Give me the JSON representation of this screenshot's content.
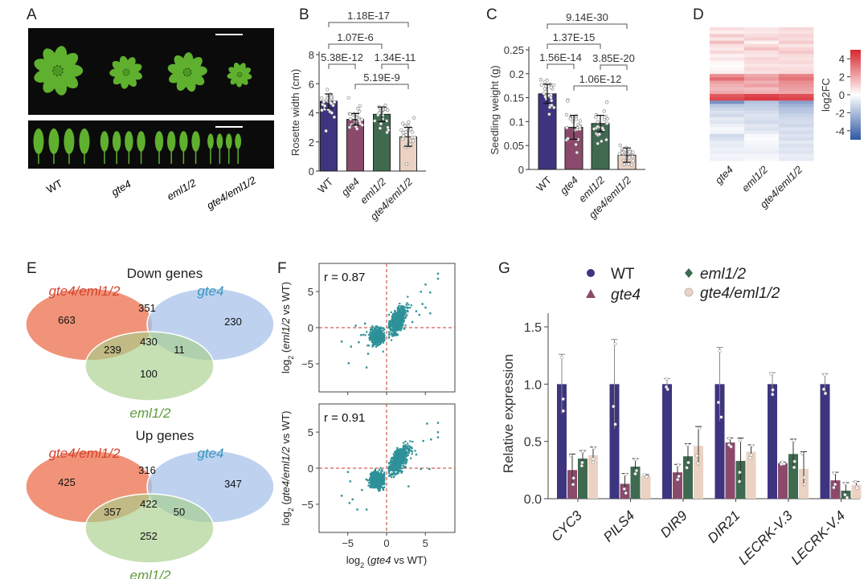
{
  "labels": {
    "A": "A",
    "B": "B",
    "C": "C",
    "D": "D",
    "E": "E",
    "F": "F",
    "G": "G"
  },
  "colors": {
    "WT": "#3d3580",
    "gte4": "#8b4a6c",
    "eml1/2": "#3f6a50",
    "gte4/eml1/2": "#ebd2c3",
    "venn_red": "#f0876a",
    "venn_blue": "#a8c3ea",
    "venn_green": "#a8d08a",
    "scatter": "#2e9198",
    "heat_pos": "#d7262e",
    "heat_neg": "#2f57a5"
  },
  "chart_data": [
    {
      "id": "A",
      "type": "image",
      "genotypes": [
        "WT",
        "gte4",
        "eml1/2",
        "gte4/eml1/2"
      ]
    },
    {
      "id": "B",
      "type": "bar",
      "categories": [
        "WT",
        "gte4",
        "eml1/2",
        "gte4/eml1/2"
      ],
      "values": [
        4.8,
        3.55,
        3.9,
        2.35
      ],
      "errors": [
        0.5,
        0.4,
        0.5,
        0.65
      ],
      "ylabel": "Rosette width (cm)",
      "ylim": [
        0,
        8
      ],
      "yticks": [
        0,
        2,
        4,
        6,
        8
      ],
      "yticklabels": [
        "0",
        "2",
        "4",
        "6",
        "8"
      ],
      "comparisons": [
        {
          "pair": [
            0,
            3
          ],
          "p": "1.18E-17"
        },
        {
          "pair": [
            0,
            2
          ],
          "p": "1.07E-6"
        },
        {
          "pair": [
            0,
            1
          ],
          "p": "5.38E-12"
        },
        {
          "pair": [
            2,
            3
          ],
          "p": "1.34E-11"
        },
        {
          "pair": [
            1,
            3
          ],
          "p": "5.19E-9"
        }
      ]
    },
    {
      "id": "C",
      "type": "bar",
      "categories": [
        "WT",
        "gte4",
        "eml1/2",
        "gte4/eml1/2"
      ],
      "values": [
        0.158,
        0.088,
        0.096,
        0.03
      ],
      "errors": [
        0.02,
        0.025,
        0.017,
        0.015
      ],
      "ylabel": "Seedling weight (g)",
      "ylim": [
        0,
        0.25
      ],
      "yticks": [
        0,
        0.05,
        0.1,
        0.15,
        0.2,
        0.25
      ],
      "yticklabels": [
        "0",
        "0.05",
        "0.1",
        "0.15",
        "0.2",
        "0.25"
      ],
      "comparisons": [
        {
          "pair": [
            0,
            3
          ],
          "p": "9.14E-30"
        },
        {
          "pair": [
            0,
            2
          ],
          "p": "1.37E-15"
        },
        {
          "pair": [
            0,
            1
          ],
          "p": "1.56E-14"
        },
        {
          "pair": [
            2,
            3
          ],
          "p": "3.85E-20"
        },
        {
          "pair": [
            1,
            3
          ],
          "p": "1.06E-12"
        }
      ]
    },
    {
      "id": "D",
      "type": "heatmap",
      "columns": [
        "gte4",
        "eml1/2",
        "gte4/eml1/2"
      ],
      "colorbar_label": "log2FC",
      "colorbar_ticks": [
        4,
        2,
        0,
        -2,
        -4
      ],
      "colorbar_ticklabels": [
        "4",
        "2",
        "0",
        "-2",
        "-4"
      ],
      "range": [
        -5,
        5
      ],
      "rows": [
        [
          0.8,
          0.6,
          0.9
        ],
        [
          0.4,
          0.5,
          0.7
        ],
        [
          1.2,
          0.8,
          1.0
        ],
        [
          0.6,
          1.1,
          0.8
        ],
        [
          1.5,
          0.3,
          1.2
        ],
        [
          0.7,
          0.9,
          0.6
        ],
        [
          0.5,
          1.4,
          1.0
        ],
        [
          0.9,
          0.7,
          1.3
        ],
        [
          0.3,
          0.6,
          0.8
        ],
        [
          0.6,
          1.0,
          0.7
        ],
        [
          0.2,
          0.8,
          0.9
        ],
        [
          0.1,
          0.6,
          0.6
        ],
        [
          0.2,
          0.9,
          0.8
        ],
        [
          0.4,
          0.7,
          0.9
        ],
        [
          2.6,
          2.0,
          2.9
        ],
        [
          3.4,
          2.4,
          3.2
        ],
        [
          2.2,
          1.8,
          2.6
        ],
        [
          1.8,
          2.2,
          2.4
        ],
        [
          1.6,
          1.5,
          2.2
        ],
        [
          2.0,
          1.8,
          2.0
        ],
        [
          3.8,
          4.3,
          4.0
        ],
        [
          4.2,
          4.6,
          4.3
        ],
        [
          -3.2,
          -1.8,
          -2.8
        ],
        [
          -1.6,
          -1.5,
          -2.2
        ],
        [
          -1.2,
          -1.3,
          -1.8
        ],
        [
          -0.9,
          -1.0,
          -1.6
        ],
        [
          -1.1,
          -0.8,
          -1.3
        ],
        [
          -0.6,
          -0.9,
          -1.1
        ],
        [
          -0.8,
          -1.1,
          -1.0
        ],
        [
          -0.4,
          -0.7,
          -1.2
        ],
        [
          -0.2,
          -0.9,
          -0.8
        ],
        [
          -0.3,
          -0.6,
          -1.0
        ],
        [
          -1.1,
          -0.2,
          -0.8
        ],
        [
          -0.9,
          -0.1,
          -1.0
        ],
        [
          -0.5,
          -0.2,
          -0.6
        ],
        [
          -0.6,
          -0.3,
          -0.9
        ],
        [
          -0.4,
          -0.4,
          -0.7
        ],
        [
          -0.5,
          -0.5,
          -0.8
        ],
        [
          -0.3,
          -0.3,
          -0.5
        ],
        [
          -0.4,
          -0.2,
          -0.6
        ]
      ]
    },
    {
      "id": "E",
      "type": "venn",
      "sets": [
        "gte4/eml1/2",
        "gte4",
        "eml1/2"
      ],
      "diagrams": [
        {
          "title": "Down genes",
          "regions": {
            "gte4/eml1/2_only": "663",
            "gte4/eml1/2&gte4": "351",
            "gte4_only": "230",
            "gte4/eml1/2&eml1/2": "239",
            "all": "430",
            "gte4&eml1/2": "11",
            "eml1/2_only": "100"
          }
        },
        {
          "title": "Up genes",
          "regions": {
            "gte4/eml1/2_only": "425",
            "gte4/eml1/2&gte4": "316",
            "gte4_only": "347",
            "gte4/eml1/2&eml1/2": "357",
            "all": "422",
            "gte4&eml1/2": "50",
            "eml1/2_only": "252"
          }
        }
      ]
    },
    {
      "id": "F",
      "type": "scatter",
      "xlim": [
        -8.7,
        8.8
      ],
      "ylim": [
        -8.9,
        8.9
      ],
      "xticks": [
        -5,
        0,
        5
      ],
      "yticks": [
        5,
        0,
        -5
      ],
      "ticklabels": {
        "-5": "−5",
        "0": "0",
        "5": "5"
      },
      "xlabel": {
        "pre": "log",
        "sub": "2",
        "open": " (",
        "gene": "gte4",
        "post": " vs WT)"
      },
      "plots": [
        {
          "r_label": "r = 0.87",
          "ylabel": {
            "pre": "log",
            "sub": "2",
            "open": " (",
            "gene": "eml1/2",
            "post": " vs WT)"
          },
          "clusters": [
            {
              "center": [
                -1.2,
                -1.2
              ],
              "sd": [
                0.5,
                0.55
              ],
              "n": 450
            },
            {
              "center": [
                1.4,
                1.0
              ],
              "sd": [
                0.5,
                0.7
              ],
              "n": 650,
              "slope": 0.9
            }
          ],
          "outliers": [
            [
              -4.9,
              -4.9
            ],
            [
              -2.6,
              -5.5
            ],
            [
              -5.8,
              -1.9
            ],
            [
              -4.6,
              -2.6
            ],
            [
              -3.6,
              -2.0
            ],
            [
              -2.4,
              -3.6
            ],
            [
              -4.0,
              0.3
            ],
            [
              -2.8,
              0.6
            ],
            [
              -3.3,
              -1.0
            ],
            [
              6.6,
              7.5
            ],
            [
              6.6,
              6.8
            ],
            [
              5.0,
              6.0
            ],
            [
              5.6,
              4.9
            ],
            [
              4.6,
              3.3
            ],
            [
              5.0,
              2.8
            ],
            [
              3.8,
              2.3
            ],
            [
              4.2,
              1.8
            ],
            [
              3.3,
              0.8
            ],
            [
              5.6,
              2.0
            ],
            [
              4.4,
              5.0
            ]
          ]
        },
        {
          "r_label": "r = 0.91",
          "ylabel": {
            "pre": "log",
            "sub": "2",
            "open": " (",
            "gene": "gte4/eml1/2",
            "post": " vs WT)"
          },
          "clusters": [
            {
              "center": [
                -1.2,
                -1.6
              ],
              "sd": [
                0.5,
                0.6
              ],
              "n": 450
            },
            {
              "center": [
                1.6,
                1.2
              ],
              "sd": [
                0.6,
                0.7
              ],
              "n": 650,
              "slope": 0.9
            }
          ],
          "outliers": [
            [
              -5.8,
              -3.8
            ],
            [
              -4.8,
              -4.8
            ],
            [
              -3.8,
              -5.7
            ],
            [
              -2.6,
              -5.7
            ],
            [
              -4.4,
              -4.3
            ],
            [
              -4.7,
              -1.8
            ],
            [
              -5.0,
              -0.5
            ],
            [
              -3.2,
              -3.0
            ],
            [
              6.6,
              6.3
            ],
            [
              6.6,
              5.0
            ],
            [
              6.6,
              4.3
            ],
            [
              5.2,
              6.2
            ],
            [
              5.7,
              4.0
            ],
            [
              4.7,
              3.8
            ],
            [
              2.8,
              -2.5
            ],
            [
              4.4,
              -0.1
            ],
            [
              5.5,
              -0.1
            ],
            [
              3.8,
              1.9
            ],
            [
              1.9,
              -0.6
            ]
          ]
        }
      ]
    },
    {
      "id": "G",
      "type": "bar",
      "categories": [
        "CYC3",
        "PILS4",
        "DIR9",
        "DIR21",
        "LECRK-V.3",
        "LECRK-V.4"
      ],
      "ylabel": "Relative expression",
      "ylim": [
        0,
        1.6
      ],
      "yticks": [
        0,
        0.5,
        1,
        1.5
      ],
      "yticklabels": [
        "0.0",
        "0.5",
        "1.0",
        "1.5"
      ],
      "legend": [
        "WT",
        "gte4",
        "eml1/2",
        "gte4/eml1/2"
      ],
      "legend_markers": [
        "circle",
        "triangle",
        "diamond",
        "circle"
      ],
      "series": [
        {
          "name": "WT",
          "values": [
            1.0,
            1.0,
            1.0,
            1.0,
            1.0,
            1.0
          ],
          "errors": [
            0.26,
            0.39,
            0.05,
            0.32,
            0.1,
            0.09
          ]
        },
        {
          "name": "gte4",
          "values": [
            0.25,
            0.13,
            0.23,
            0.49,
            0.31,
            0.16
          ],
          "errors": [
            0.14,
            0.09,
            0.07,
            0.04,
            0.01,
            0.07
          ]
        },
        {
          "name": "eml1/2",
          "values": [
            0.35,
            0.28,
            0.37,
            0.33,
            0.39,
            0.07
          ],
          "errors": [
            0.07,
            0.07,
            0.11,
            0.2,
            0.13,
            0.07
          ]
        },
        {
          "name": "gte4/eml1/2",
          "values": [
            0.38,
            0.2,
            0.46,
            0.41,
            0.26,
            0.12
          ],
          "errors": [
            0.07,
            0.01,
            0.17,
            0.06,
            0.15,
            0.03
          ]
        }
      ]
    }
  ]
}
